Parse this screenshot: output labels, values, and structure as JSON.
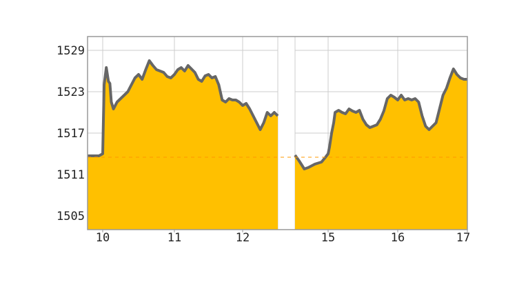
{
  "chart_data": {
    "type": "area",
    "title": "",
    "xlabel": "",
    "ylabel": "",
    "grid": true,
    "legend": "none",
    "ylim": [
      1503,
      1531
    ],
    "xlim": [
      9.8,
      17
    ],
    "y_ticks": [
      1529,
      1523,
      1517,
      1511,
      1505
    ],
    "x_ticks": [
      10,
      11,
      12,
      15,
      16,
      17
    ],
    "x_tick_labels": [
      "10",
      "11",
      "12",
      "15",
      "16",
      "17"
    ],
    "reference_line": {
      "value": 1513.5,
      "color": "#ff9900"
    },
    "gap": {
      "from": 12.5,
      "to": 14.75
    },
    "colors": {
      "fill": "#ffc000",
      "line": "#666666",
      "grid": "#cccccc",
      "frame": "#999999",
      "background": "#ffffff"
    },
    "series": [
      {
        "values": [
          [
            9.8,
            1513.7
          ],
          [
            9.95,
            1513.7
          ],
          [
            10.0,
            1514.0
          ],
          [
            10.02,
            1524.0
          ],
          [
            10.05,
            1526.5
          ],
          [
            10.08,
            1524.5
          ],
          [
            10.1,
            1524.2
          ],
          [
            10.12,
            1521.5
          ],
          [
            10.15,
            1520.5
          ],
          [
            10.2,
            1521.5
          ],
          [
            10.25,
            1522.0
          ],
          [
            10.3,
            1522.5
          ],
          [
            10.35,
            1523.0
          ],
          [
            10.4,
            1524.0
          ],
          [
            10.45,
            1525.0
          ],
          [
            10.5,
            1525.5
          ],
          [
            10.55,
            1524.8
          ],
          [
            10.6,
            1526.2
          ],
          [
            10.65,
            1527.5
          ],
          [
            10.7,
            1526.8
          ],
          [
            10.75,
            1526.2
          ],
          [
            10.8,
            1526.0
          ],
          [
            10.85,
            1525.8
          ],
          [
            10.9,
            1525.2
          ],
          [
            10.95,
            1525.0
          ],
          [
            11.0,
            1525.5
          ],
          [
            11.05,
            1526.2
          ],
          [
            11.1,
            1526.5
          ],
          [
            11.15,
            1526.0
          ],
          [
            11.2,
            1526.8
          ],
          [
            11.25,
            1526.3
          ],
          [
            11.3,
            1525.8
          ],
          [
            11.35,
            1524.8
          ],
          [
            11.4,
            1524.5
          ],
          [
            11.45,
            1525.3
          ],
          [
            11.5,
            1525.5
          ],
          [
            11.55,
            1525.0
          ],
          [
            11.6,
            1525.2
          ],
          [
            11.65,
            1524.0
          ],
          [
            11.7,
            1521.8
          ],
          [
            11.75,
            1521.5
          ],
          [
            11.8,
            1522.0
          ],
          [
            11.85,
            1521.8
          ],
          [
            11.9,
            1521.8
          ],
          [
            11.95,
            1521.5
          ],
          [
            12.0,
            1521.0
          ],
          [
            12.05,
            1521.3
          ],
          [
            12.1,
            1520.5
          ],
          [
            12.15,
            1519.5
          ],
          [
            12.2,
            1518.5
          ],
          [
            12.25,
            1517.5
          ],
          [
            12.3,
            1518.5
          ],
          [
            12.35,
            1520.0
          ],
          [
            12.4,
            1519.5
          ],
          [
            12.45,
            1520.0
          ],
          [
            12.5,
            1519.5
          ],
          [
            14.75,
            1513.8
          ],
          [
            14.78,
            1513.0
          ],
          [
            14.82,
            1511.8
          ],
          [
            14.85,
            1512.0
          ],
          [
            14.9,
            1512.5
          ],
          [
            14.95,
            1512.8
          ],
          [
            14.98,
            1513.5
          ],
          [
            15.0,
            1514.0
          ],
          [
            15.02,
            1515.0
          ],
          [
            15.05,
            1517.0
          ],
          [
            15.08,
            1518.5
          ],
          [
            15.1,
            1520.0
          ],
          [
            15.15,
            1520.3
          ],
          [
            15.2,
            1520.0
          ],
          [
            15.25,
            1519.8
          ],
          [
            15.3,
            1520.5
          ],
          [
            15.35,
            1520.2
          ],
          [
            15.4,
            1520.0
          ],
          [
            15.45,
            1520.3
          ],
          [
            15.5,
            1519.0
          ],
          [
            15.55,
            1518.2
          ],
          [
            15.6,
            1517.8
          ],
          [
            15.65,
            1518.0
          ],
          [
            15.7,
            1518.2
          ],
          [
            15.75,
            1519.0
          ],
          [
            15.8,
            1520.2
          ],
          [
            15.85,
            1522.0
          ],
          [
            15.9,
            1522.5
          ],
          [
            15.95,
            1522.2
          ],
          [
            16.0,
            1521.8
          ],
          [
            16.05,
            1522.5
          ],
          [
            16.1,
            1521.8
          ],
          [
            16.15,
            1522.0
          ],
          [
            16.2,
            1521.8
          ],
          [
            16.25,
            1522.0
          ],
          [
            16.3,
            1521.5
          ],
          [
            16.35,
            1519.5
          ],
          [
            16.4,
            1518.0
          ],
          [
            16.45,
            1517.5
          ],
          [
            16.5,
            1518.0
          ],
          [
            16.55,
            1518.5
          ],
          [
            16.6,
            1520.5
          ],
          [
            16.65,
            1522.5
          ],
          [
            16.7,
            1523.5
          ],
          [
            16.75,
            1525.0
          ],
          [
            16.8,
            1526.3
          ],
          [
            16.85,
            1525.5
          ],
          [
            16.9,
            1525.0
          ],
          [
            16.95,
            1524.8
          ],
          [
            17.0,
            1524.8
          ],
          [
            17.5,
            1524.8
          ]
        ]
      }
    ]
  }
}
